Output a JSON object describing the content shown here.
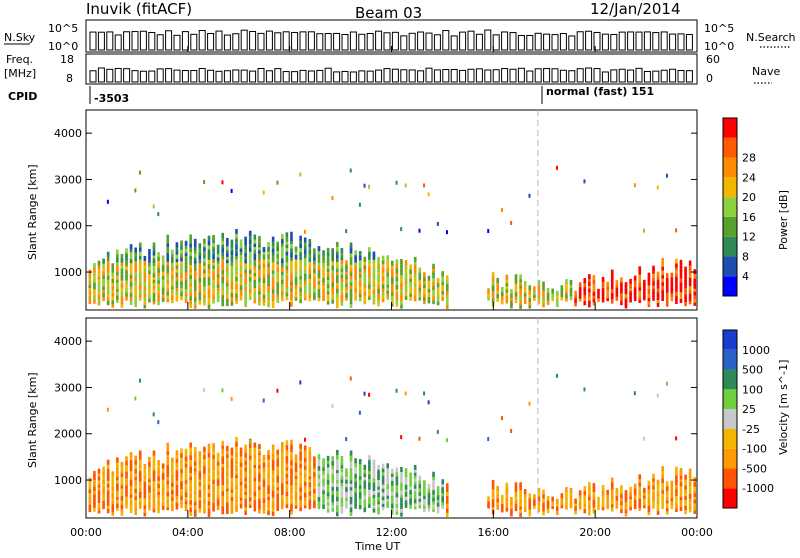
{
  "header": {
    "station": "Inuvik (fitACF)",
    "beam": "Beam 03",
    "date": "12/Jan/2014"
  },
  "params": {
    "nsky_label": "N.Sky",
    "nsky_ticks": [
      "10^5",
      "10^0"
    ],
    "freq_label_1": "Freq.",
    "freq_label_2": "[MHz]",
    "freq_ticks": [
      "18",
      "8"
    ],
    "cpid_label": "CPID",
    "nsearch_label": "N.Search",
    "nsearch_ticks": [
      "10^5",
      "10^0"
    ],
    "nave_label": "Nave",
    "nave_ticks": [
      "60",
      "0"
    ],
    "cpid_value_1": "-3503",
    "cpid_value_2": "normal (fast) 151"
  },
  "colors": {
    "power_scale": [
      "#0000ff",
      "#1e4fb0",
      "#2e8b57",
      "#5aa02c",
      "#8cd03c",
      "#f2b600",
      "#ff8c00",
      "#ff5a00",
      "#ff0000"
    ],
    "velocity_scale": [
      "#1a3ccf",
      "#2b62c8",
      "#2e8b57",
      "#6fcf3c",
      "#c8c8c8",
      "#f2b600",
      "#ff9a00",
      "#ff5500",
      "#ff0000"
    ]
  },
  "chart_data": [
    {
      "type": "heatmap",
      "name": "power",
      "xlabel": "",
      "ylabel": "Slant Range [km]",
      "xlim": [
        0,
        24
      ],
      "ylim": [
        180,
        4500
      ],
      "yticks": [
        "1000",
        "2000",
        "3000",
        "4000"
      ],
      "colorbar_label": "Power [dB]",
      "colorbar_ticks": [
        "4",
        "8",
        "12",
        "16",
        "20",
        "24",
        "28"
      ],
      "marker_time": "17:45"
    },
    {
      "type": "heatmap",
      "name": "velocity",
      "xlabel": "Time UT",
      "ylabel": "Slant Range [km]",
      "xlim": [
        0,
        24
      ],
      "ylim": [
        180,
        4500
      ],
      "xticks": [
        "00:00",
        "04:00",
        "08:00",
        "12:00",
        "16:00",
        "20:00",
        "00:00"
      ],
      "yticks": [
        "1000",
        "2000",
        "3000",
        "4000"
      ],
      "colorbar_label": "Velocity [m s^-1]",
      "colorbar_ticks": [
        "1000",
        "500",
        "100",
        "25",
        "-25",
        "-100",
        "-500",
        "-1000"
      ],
      "marker_time": "17:45"
    }
  ]
}
